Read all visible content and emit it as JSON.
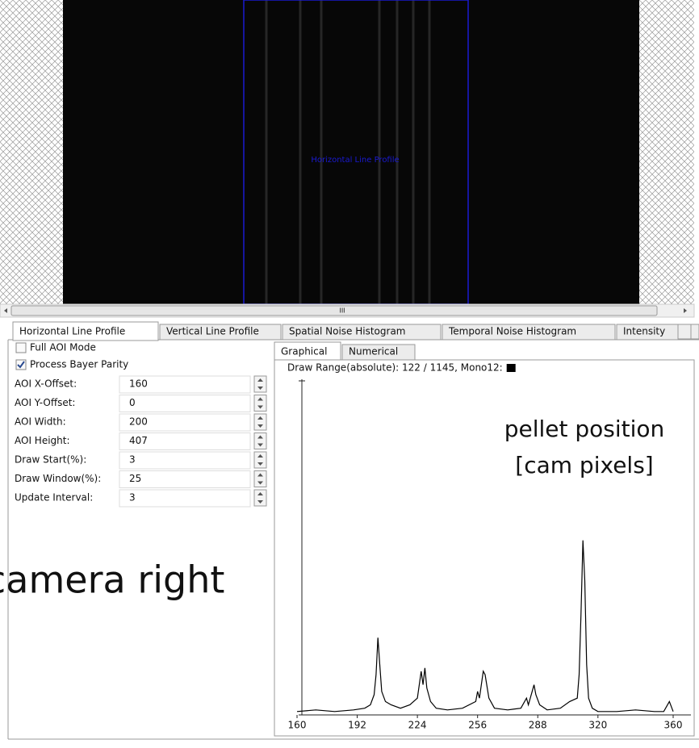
{
  "image_view": {
    "overlay_label": "Horizontal Line Profile",
    "scroll_marker": "III"
  },
  "tabs": [
    "Horizontal Line Profile",
    "Vertical Line Profile",
    "Spatial Noise Histogram",
    "Temporal Noise Histogram",
    "Intensity"
  ],
  "left_panel": {
    "checkboxes": [
      {
        "label": "Full AOI Mode",
        "checked": false
      },
      {
        "label": "Process Bayer Parity",
        "checked": true
      }
    ],
    "fields": [
      {
        "label": "AOI X-Offset:",
        "value": 160
      },
      {
        "label": "AOI Y-Offset:",
        "value": 0
      },
      {
        "label": "AOI Width:",
        "value": 200
      },
      {
        "label": "AOI Height:",
        "value": 407
      },
      {
        "label": "Draw Start(%):",
        "value": 3
      },
      {
        "label": "Draw Window(%):",
        "value": 25
      },
      {
        "label": "Update Interval:",
        "value": 3
      }
    ]
  },
  "sub_tabs": [
    "Graphical",
    "Numerical"
  ],
  "chart_data": {
    "type": "line",
    "title": "Draw Range(absolute): 122 / 1145, Mono12:",
    "color": "#000000",
    "x": [
      160,
      170,
      180,
      190,
      196,
      199,
      201,
      202,
      203,
      204,
      205,
      207,
      210,
      215,
      220,
      224,
      226,
      227,
      228,
      229,
      231,
      234,
      240,
      248,
      255,
      256,
      257,
      259,
      260,
      262,
      265,
      272,
      279,
      282,
      283,
      285,
      286,
      287,
      289,
      293,
      300,
      305,
      309,
      310,
      311,
      312,
      313,
      314,
      315,
      317,
      320,
      330,
      340,
      350,
      355,
      358,
      360
    ],
    "values": [
      1,
      1.5,
      1,
      1.5,
      2,
      3,
      6,
      12,
      23,
      15,
      7,
      4,
      3,
      2,
      3,
      5,
      13,
      9,
      14,
      8,
      4,
      2,
      1.5,
      2,
      4,
      7,
      5,
      13,
      12,
      5,
      2,
      1.5,
      2,
      5,
      3,
      7,
      9,
      6,
      3,
      1.5,
      2,
      4,
      5,
      12,
      30,
      52,
      40,
      15,
      5,
      2,
      1,
      1,
      1.5,
      1,
      1,
      4,
      1
    ],
    "xlim": [
      160,
      360
    ],
    "xticks": [
      160,
      192,
      224,
      256,
      288,
      320,
      360
    ],
    "ylim": [
      0,
      100
    ]
  },
  "annotations": [
    "pellet position",
    "[cam pixels]",
    "camera right"
  ]
}
